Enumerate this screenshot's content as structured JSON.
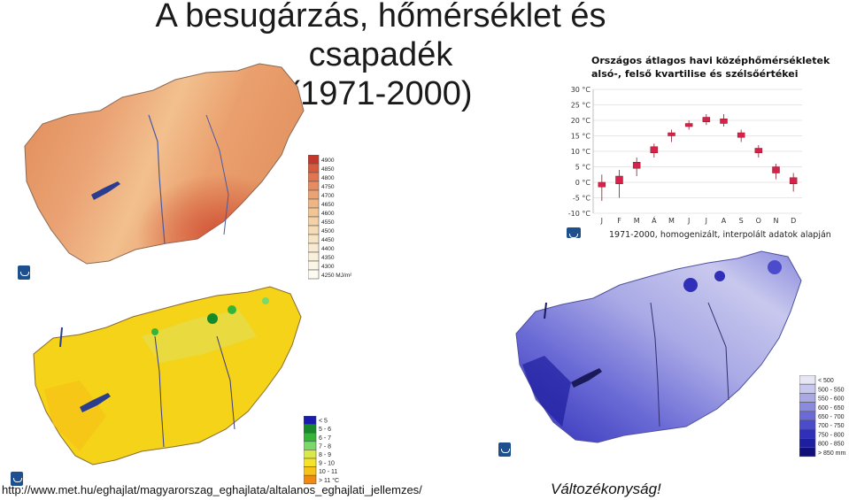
{
  "title": {
    "line1": "A besugárzás, hőmérséklet és csapadék",
    "line2": "(1971-2000)"
  },
  "source_url": "http://www.met.hu/eghajlat/magyarorszag_eghajlata/altalanos_eghajlati_jellemzes/",
  "footer_note": "Változékonyság!",
  "radiation_legend": {
    "unit": "MJ/m²",
    "labels": [
      "4900",
      "4850",
      "4800",
      "4750",
      "4700",
      "4650",
      "4600",
      "4550",
      "4500",
      "4450",
      "4400",
      "4350",
      "4300",
      "4250 MJ/m²"
    ],
    "colors": [
      "#c5372a",
      "#d65a3e",
      "#df7650",
      "#e68c60",
      "#eba372",
      "#efb684",
      "#f2c594",
      "#f4d2a5",
      "#f6dcb4",
      "#f7e4c2",
      "#f8ead0",
      "#f9f0dc",
      "#fbf5e8",
      "#fdfaf2"
    ]
  },
  "temperature_legend": {
    "labels": [
      "< 5",
      "5 - 6",
      "6 - 7",
      "7 - 8",
      "8 - 9",
      "9 - 10",
      "10 - 11",
      "> 11 °C"
    ],
    "colors": [
      "#1b1bb0",
      "#168a2a",
      "#35b43a",
      "#7bd86b",
      "#d9e84a",
      "#f4e32a",
      "#f7c21a",
      "#f08a12"
    ]
  },
  "precip_legend": {
    "labels": [
      "< 500",
      "500 - 550",
      "550 - 600",
      "600 - 650",
      "650 - 700",
      "700 - 750",
      "750 - 800",
      "800 - 850",
      "> 850 mm"
    ],
    "colors": [
      "#e6e6f5",
      "#c8c8ee",
      "#a9a9e6",
      "#8a8ade",
      "#6b6bd6",
      "#4b4bcc",
      "#2f2fb8",
      "#1e1ea0",
      "#101078"
    ]
  },
  "chart_data": {
    "type": "boxplot",
    "title_line1": "Országos átlagos havi középhőmérsékletek",
    "title_line2": "alsó-, felső kvartilise és szélsőértékei",
    "footnote": "1971-2000, homogenizált, interpolált adatok alapján",
    "categories": [
      "J",
      "F",
      "M",
      "Á",
      "M",
      "J",
      "J",
      "A",
      "S",
      "O",
      "N",
      "D"
    ],
    "y_ticks": [
      "30 °C",
      "25 °C",
      "20 °C",
      "15 °C",
      "10 °C",
      "5 °C",
      "0 °C",
      "-5 °C",
      "-10 °C"
    ],
    "ylim": [
      -10,
      30
    ],
    "min": [
      -6,
      -5,
      2,
      8,
      13,
      17,
      18.5,
      18,
      13,
      8,
      1,
      -3
    ],
    "q1": [
      -1.5,
      -0.5,
      4.5,
      9.5,
      15,
      18,
      19.5,
      19,
      14.5,
      9.5,
      3,
      -0.5
    ],
    "q3": [
      0,
      2,
      6.5,
      11.5,
      16,
      19,
      21,
      20.5,
      16,
      11,
      5,
      1.5
    ],
    "max": [
      2.5,
      4,
      8,
      12.5,
      17,
      20,
      22,
      22,
      17,
      12,
      6,
      3
    ],
    "box_color": "#d6224a",
    "whisker_color": "#8a1a2a"
  },
  "colors": {
    "text": "#111111",
    "lake": "#2a3d8f",
    "border": "#555555"
  }
}
